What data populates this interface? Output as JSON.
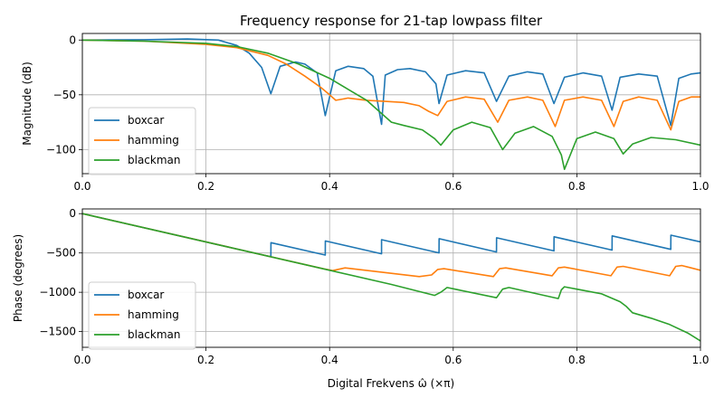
{
  "chart_data": [
    {
      "type": "line",
      "title": "Frequency response for 21-tap lowpass filter",
      "xlabel": "",
      "ylabel": "Magnitude (dB)",
      "xlim": [
        0,
        1
      ],
      "ylim": [
        -122,
        6
      ],
      "xticks": [
        0.0,
        0.2,
        0.4,
        0.6,
        0.8,
        1.0
      ],
      "xtick_labels": [
        "0.0",
        "0.2",
        "0.4",
        "0.6",
        "0.8",
        "1.0"
      ],
      "yticks": [
        0,
        -50,
        -100
      ],
      "ytick_labels": [
        "0",
        "−50",
        "−100"
      ],
      "grid": true,
      "legend": "lower-left",
      "series": [
        {
          "name": "boxcar",
          "color": "#1f77b4",
          "x": [
            0.0,
            0.1,
            0.17,
            0.22,
            0.25,
            0.27,
            0.29,
            0.305,
            0.32,
            0.345,
            0.36,
            0.38,
            0.393,
            0.41,
            0.43,
            0.455,
            0.47,
            0.484,
            0.49,
            0.51,
            0.53,
            0.555,
            0.572,
            0.577,
            0.59,
            0.62,
            0.65,
            0.67,
            0.69,
            0.72,
            0.745,
            0.763,
            0.78,
            0.81,
            0.84,
            0.857,
            0.87,
            0.9,
            0.93,
            0.952,
            0.965,
            0.985,
            1.0
          ],
          "y": [
            0,
            0.3,
            1,
            0,
            -5,
            -12,
            -25,
            -49,
            -24,
            -20,
            -22,
            -30,
            -69,
            -28,
            -24,
            -26,
            -33,
            -77,
            -32,
            -27,
            -26,
            -29,
            -40,
            -58,
            -32,
            -28,
            -30,
            -56,
            -33,
            -29,
            -31,
            -58,
            -34,
            -30,
            -33,
            -64,
            -34,
            -31,
            -33,
            -78,
            -35,
            -31,
            -30
          ]
        },
        {
          "name": "hamming",
          "color": "#ff7f0e",
          "x": [
            0.0,
            0.1,
            0.2,
            0.25,
            0.3,
            0.33,
            0.36,
            0.385,
            0.4,
            0.41,
            0.43,
            0.46,
            0.49,
            0.52,
            0.545,
            0.56,
            0.575,
            0.59,
            0.62,
            0.65,
            0.672,
            0.69,
            0.72,
            0.745,
            0.765,
            0.78,
            0.81,
            0.84,
            0.86,
            0.875,
            0.9,
            0.93,
            0.952,
            0.965,
            0.985,
            1.0
          ],
          "y": [
            0,
            -1,
            -4,
            -7,
            -14,
            -22,
            -33,
            -43,
            -50,
            -55,
            -53,
            -55,
            -56,
            -57,
            -60,
            -65,
            -69,
            -56,
            -52,
            -54,
            -75,
            -55,
            -52,
            -55,
            -79,
            -55,
            -52,
            -55,
            -79,
            -56,
            -52,
            -55,
            -82,
            -56,
            -52,
            -52
          ]
        },
        {
          "name": "blackman",
          "color": "#2ca02c",
          "x": [
            0.0,
            0.1,
            0.2,
            0.25,
            0.3,
            0.35,
            0.4,
            0.43,
            0.46,
            0.48,
            0.5,
            0.52,
            0.55,
            0.57,
            0.58,
            0.6,
            0.63,
            0.66,
            0.68,
            0.7,
            0.73,
            0.76,
            0.775,
            0.78,
            0.8,
            0.83,
            0.86,
            0.875,
            0.89,
            0.92,
            0.96,
            1.0
          ],
          "y": [
            0,
            -1,
            -3,
            -6,
            -12,
            -22,
            -35,
            -45,
            -55,
            -65,
            -75,
            -78,
            -82,
            -90,
            -96,
            -82,
            -75,
            -80,
            -100,
            -85,
            -79,
            -88,
            -105,
            -118,
            -90,
            -84,
            -90,
            -104,
            -95,
            -89,
            -91,
            -96
          ]
        }
      ]
    },
    {
      "type": "line",
      "title": "",
      "xlabel": "Digital Frekvens ω̂ (×π)",
      "ylabel": "Phase (degrees)",
      "xlim": [
        0,
        1
      ],
      "ylim": [
        -1700,
        60
      ],
      "xticks": [
        0.0,
        0.2,
        0.4,
        0.6,
        0.8,
        1.0
      ],
      "xtick_labels": [
        "0.0",
        "0.2",
        "0.4",
        "0.6",
        "0.8",
        "1.0"
      ],
      "yticks": [
        0,
        -500,
        -1000,
        -1500
      ],
      "ytick_labels": [
        "0",
        "−500",
        "−1000",
        "−1500"
      ],
      "grid": true,
      "legend": "lower-left",
      "series": [
        {
          "name": "boxcar",
          "color": "#1f77b4",
          "x": [
            0.0,
            0.305,
            0.3051,
            0.393,
            0.3931,
            0.484,
            0.4841,
            0.577,
            0.5771,
            0.67,
            0.6701,
            0.763,
            0.7631,
            0.857,
            0.8571,
            0.952,
            0.9521,
            1.0
          ],
          "y": [
            0,
            -549,
            -369,
            -527,
            -347,
            -511,
            -331,
            -499,
            -319,
            -487,
            -307,
            -474,
            -294,
            -463,
            -283,
            -454,
            -274,
            -360
          ]
        },
        {
          "name": "hamming",
          "color": "#ff7f0e",
          "x": [
            0.0,
            0.39,
            0.405,
            0.425,
            0.545,
            0.565,
            0.575,
            0.585,
            0.665,
            0.675,
            0.685,
            0.76,
            0.77,
            0.78,
            0.855,
            0.865,
            0.875,
            0.95,
            0.96,
            0.97,
            1.0
          ],
          "y": [
            0,
            -702,
            -725,
            -690,
            -800,
            -780,
            -710,
            -700,
            -800,
            -700,
            -690,
            -790,
            -690,
            -680,
            -790,
            -680,
            -670,
            -790,
            -670,
            -660,
            -720
          ]
        },
        {
          "name": "blackman",
          "color": "#2ca02c",
          "x": [
            0.0,
            0.4,
            0.5,
            0.57,
            0.58,
            0.59,
            0.67,
            0.68,
            0.69,
            0.77,
            0.775,
            0.78,
            0.84,
            0.87,
            0.88,
            0.89,
            0.92,
            0.95,
            0.98,
            1.0
          ],
          "y": [
            0,
            -720,
            -900,
            -1040,
            -1000,
            -940,
            -1070,
            -960,
            -940,
            -1080,
            -970,
            -930,
            -1020,
            -1120,
            -1180,
            -1260,
            -1330,
            -1410,
            -1520,
            -1620
          ]
        }
      ]
    }
  ]
}
